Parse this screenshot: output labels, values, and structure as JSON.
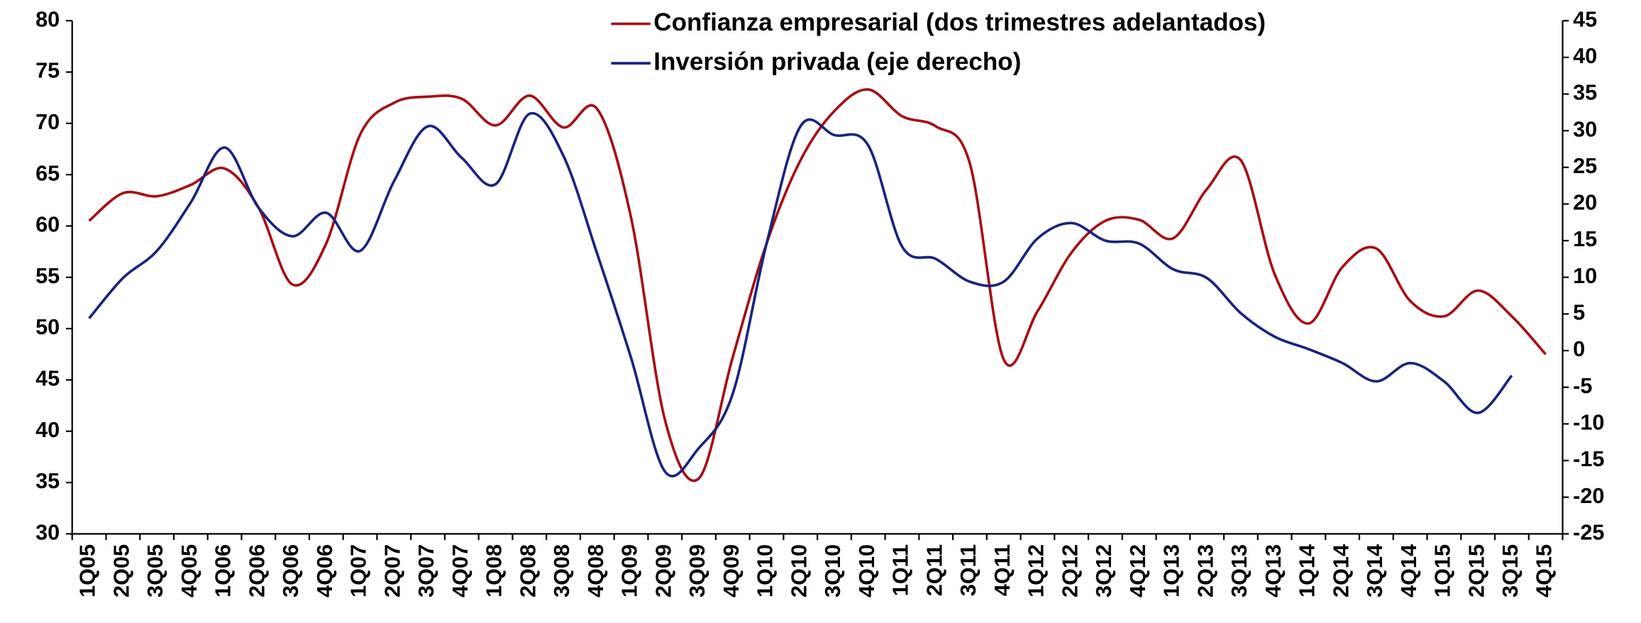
{
  "chart_data": {
    "type": "line",
    "categories": [
      "1Q05",
      "2Q05",
      "3Q05",
      "4Q05",
      "1Q06",
      "2Q06",
      "3Q06",
      "4Q06",
      "1Q07",
      "2Q07",
      "3Q07",
      "4Q07",
      "1Q08",
      "2Q08",
      "3Q08",
      "4Q08",
      "1Q09",
      "2Q09",
      "3Q09",
      "4Q09",
      "1Q10",
      "2Q10",
      "3Q10",
      "4Q10",
      "1Q11",
      "2Q11",
      "3Q11",
      "4Q11",
      "1Q12",
      "2Q12",
      "3Q12",
      "4Q12",
      "1Q13",
      "2Q13",
      "3Q13",
      "4Q13",
      "1Q14",
      "2Q14",
      "3Q14",
      "4Q14",
      "1Q15",
      "2Q15",
      "3Q15",
      "4Q15"
    ],
    "series": [
      {
        "name": "Confianza empresarial (dos trimestres adelantados)",
        "color": "#a50f15",
        "axis": "y",
        "values": [
          60.5,
          63.2,
          62.9,
          64.0,
          65.6,
          61.8,
          54.3,
          58.3,
          68.9,
          72.0,
          72.6,
          72.4,
          69.8,
          72.7,
          69.6,
          71.4,
          60.8,
          41.1,
          35.4,
          47.2,
          58.3,
          66.4,
          71.2,
          73.3,
          70.7,
          69.7,
          66.1,
          47.0,
          51.7,
          57.4,
          60.5,
          60.6,
          58.8,
          63.6,
          66.4,
          55.3,
          50.5,
          56.0,
          57.8,
          52.7,
          51.2,
          53.7,
          51.2,
          47.5
        ]
      },
      {
        "name": "Inversión privada (eje derecho)",
        "color": "#1a237e",
        "axis": "y2",
        "values": [
          4.4,
          9.9,
          13.6,
          20.2,
          27.7,
          19.5,
          15.6,
          18.8,
          13.6,
          23.1,
          30.6,
          26.3,
          22.7,
          32.3,
          26.6,
          13.2,
          -1.0,
          -16.5,
          -13.3,
          -5.9,
          14.6,
          30.6,
          29.4,
          28.0,
          14.2,
          12.5,
          9.4,
          9.4,
          15.3,
          17.4,
          15.0,
          14.6,
          11.1,
          9.9,
          5.1,
          1.9,
          0.2,
          -1.7,
          -4.2,
          -1.7,
          -4.2,
          -8.5,
          -3.4,
          null
        ]
      }
    ],
    "ylim": [
      30,
      80
    ],
    "yticks": [
      30,
      35,
      40,
      45,
      50,
      55,
      60,
      65,
      70,
      75,
      80
    ],
    "y2lim": [
      -25,
      45
    ],
    "y2ticks": [
      -25,
      -20,
      -15,
      -10,
      -5,
      0,
      5,
      10,
      15,
      20,
      25,
      30,
      35,
      40,
      45
    ],
    "legend": "top"
  }
}
